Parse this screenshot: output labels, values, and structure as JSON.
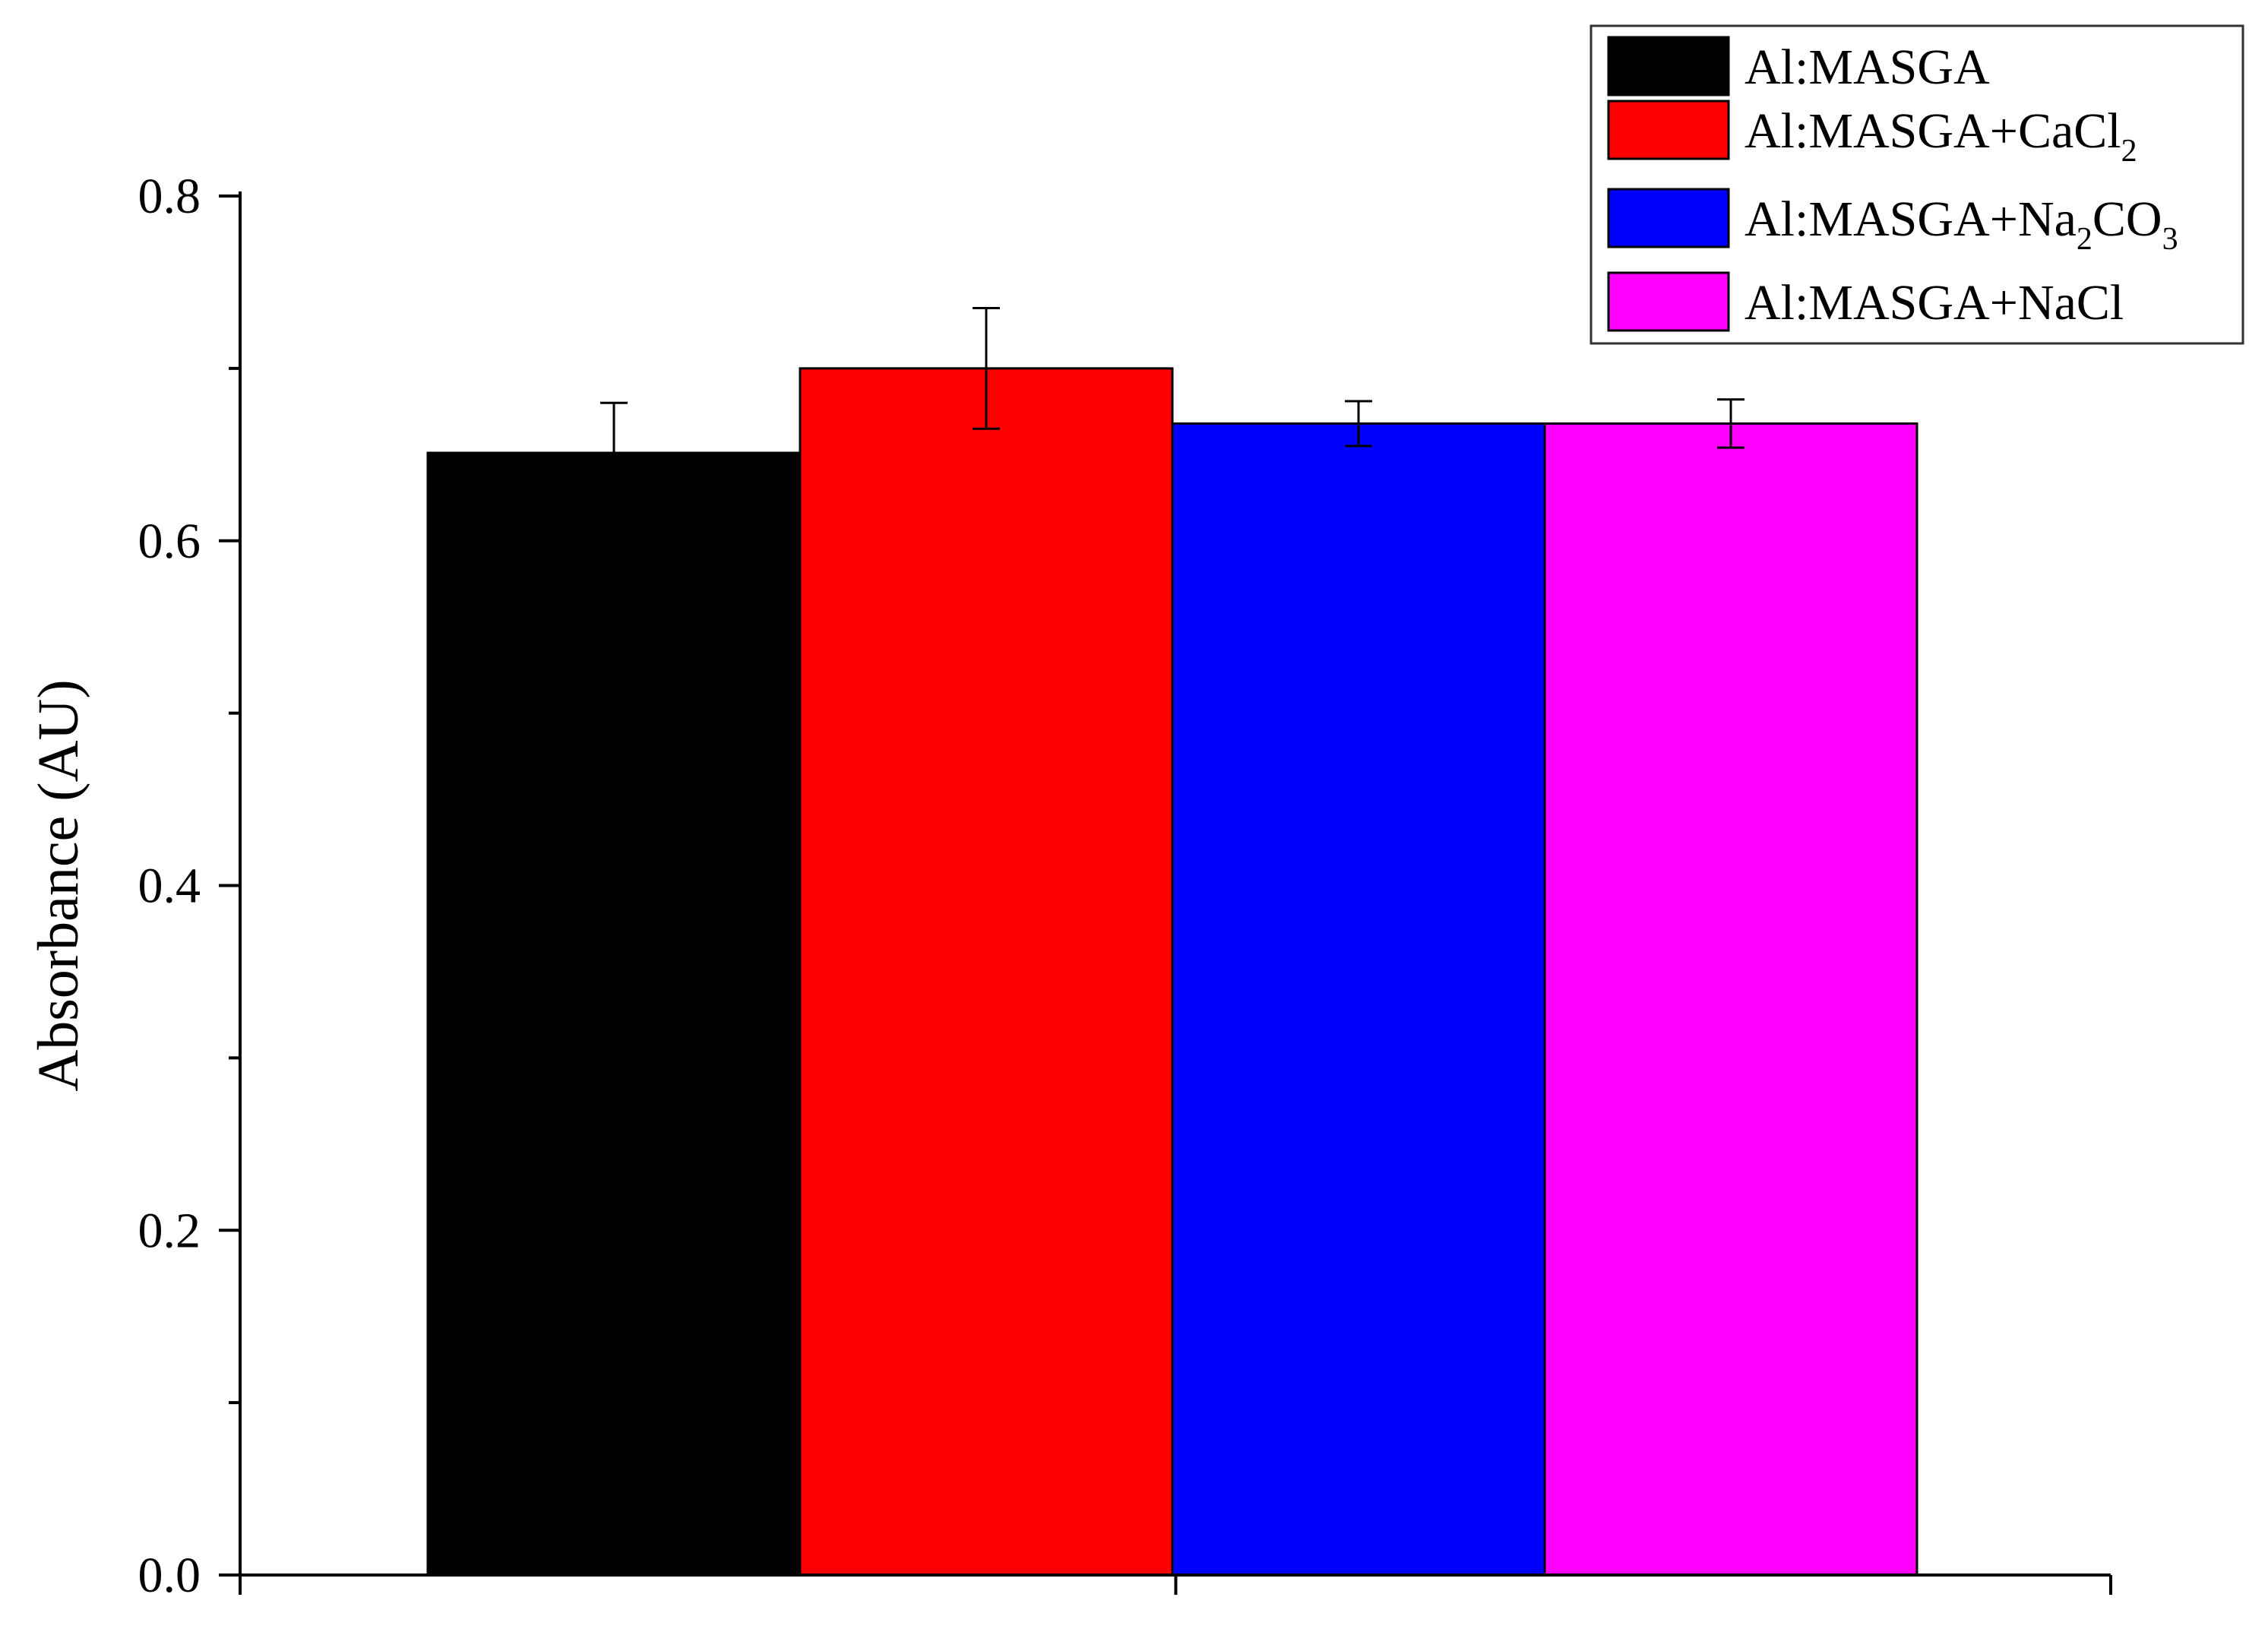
{
  "chart_data": {
    "type": "bar",
    "title": "",
    "xlabel": "",
    "ylabel": "Absorbance (AU)",
    "ylim": [
      0.0,
      0.8
    ],
    "yticks": [
      "0.0",
      "0.2",
      "0.4",
      "0.6",
      "0.8"
    ],
    "ytick_values": [
      0.0,
      0.2,
      0.4,
      0.6,
      0.8
    ],
    "grid": false,
    "legend_position": "top-right",
    "series": [
      {
        "name": "Al:MASGA",
        "name_parts": [
          {
            "text": "Al:MASGA",
            "sub": ""
          }
        ],
        "value": 0.651,
        "error": 0.029,
        "color": "#000000"
      },
      {
        "name": "Al:MASGA+CaCl2",
        "name_parts": [
          {
            "text": "Al:MASGA+CaCl",
            "sub": ""
          },
          {
            "text": "",
            "sub": "2"
          }
        ],
        "value": 0.7,
        "error": 0.035,
        "color": "#ff0000"
      },
      {
        "name": "Al:MASGA+Na2CO3",
        "name_parts": [
          {
            "text": "Al:MASGA+Na",
            "sub": "2"
          },
          {
            "text": "CO",
            "sub": "3"
          }
        ],
        "value": 0.668,
        "error": 0.013,
        "color": "#0000ff"
      },
      {
        "name": "Al:MASGA+NaCl",
        "name_parts": [
          {
            "text": "Al:MASGA+NaCl",
            "sub": ""
          }
        ],
        "value": 0.668,
        "error": 0.014,
        "color": "#ff00ff"
      }
    ]
  }
}
